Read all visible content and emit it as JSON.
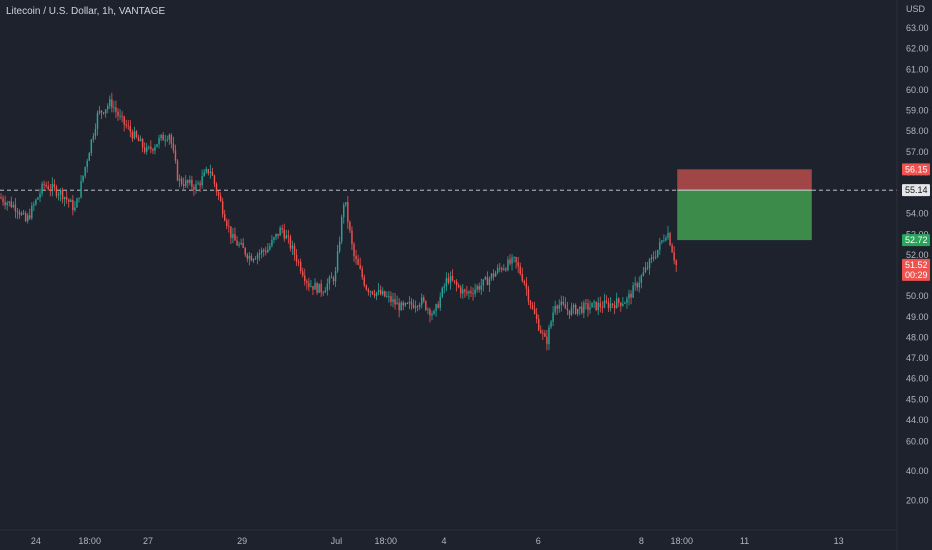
{
  "chart_data": {
    "type": "candlestick",
    "title": "Litecoin / U.S. Dollar, 1h, VANTAGE",
    "currency": "USD",
    "ylim": [
      44,
      63.5
    ],
    "y_ticks": [
      "63.00",
      "62.00",
      "61.00",
      "60.00",
      "59.00",
      "58.00",
      "57.00",
      "56.00",
      "55.00",
      "54.00",
      "53.00",
      "52.00",
      "51.00",
      "50.00",
      "49.00",
      "48.00",
      "47.00",
      "46.00",
      "45.00",
      "44.00"
    ],
    "rsi_ticks": [
      "60.00",
      "40.00",
      "20.00"
    ],
    "rsi_ylim": [
      10,
      70
    ],
    "x_ticks": [
      "24",
      "18:00",
      "27",
      "29",
      "Jul",
      "18:00",
      "4",
      "6",
      "8",
      "18:00",
      "11",
      "13"
    ],
    "x_ticks_pos": [
      0.04,
      0.1,
      0.165,
      0.27,
      0.375,
      0.43,
      0.495,
      0.6,
      0.715,
      0.76,
      0.83,
      0.935
    ],
    "price_path": [
      {
        "t": 0.0,
        "v": 54.8
      },
      {
        "t": 0.02,
        "v": 54.3
      },
      {
        "t": 0.03,
        "v": 53.6
      },
      {
        "t": 0.05,
        "v": 55.4
      },
      {
        "t": 0.07,
        "v": 55.0
      },
      {
        "t": 0.085,
        "v": 54.2
      },
      {
        "t": 0.1,
        "v": 57.0
      },
      {
        "t": 0.11,
        "v": 58.8
      },
      {
        "t": 0.125,
        "v": 59.4
      },
      {
        "t": 0.135,
        "v": 58.6
      },
      {
        "t": 0.15,
        "v": 57.8
      },
      {
        "t": 0.165,
        "v": 57.0
      },
      {
        "t": 0.18,
        "v": 57.6
      },
      {
        "t": 0.19,
        "v": 57.9
      },
      {
        "t": 0.2,
        "v": 55.6
      },
      {
        "t": 0.22,
        "v": 55.3
      },
      {
        "t": 0.235,
        "v": 56.2
      },
      {
        "t": 0.245,
        "v": 54.8
      },
      {
        "t": 0.26,
        "v": 52.8
      },
      {
        "t": 0.28,
        "v": 51.9
      },
      {
        "t": 0.3,
        "v": 52.3
      },
      {
        "t": 0.315,
        "v": 53.3
      },
      {
        "t": 0.33,
        "v": 52.0
      },
      {
        "t": 0.345,
        "v": 50.6
      },
      {
        "t": 0.36,
        "v": 50.3
      },
      {
        "t": 0.375,
        "v": 51.0
      },
      {
        "t": 0.385,
        "v": 54.8
      },
      {
        "t": 0.395,
        "v": 52.0
      },
      {
        "t": 0.41,
        "v": 50.4
      },
      {
        "t": 0.43,
        "v": 50.0
      },
      {
        "t": 0.45,
        "v": 49.4
      },
      {
        "t": 0.47,
        "v": 49.8
      },
      {
        "t": 0.485,
        "v": 49.1
      },
      {
        "t": 0.5,
        "v": 50.9
      },
      {
        "t": 0.52,
        "v": 50.1
      },
      {
        "t": 0.54,
        "v": 50.6
      },
      {
        "t": 0.56,
        "v": 51.4
      },
      {
        "t": 0.575,
        "v": 51.7
      },
      {
        "t": 0.585,
        "v": 50.8
      },
      {
        "t": 0.595,
        "v": 49.3
      },
      {
        "t": 0.61,
        "v": 47.7
      },
      {
        "t": 0.62,
        "v": 49.7
      },
      {
        "t": 0.635,
        "v": 49.3
      },
      {
        "t": 0.66,
        "v": 49.5
      },
      {
        "t": 0.68,
        "v": 49.6
      },
      {
        "t": 0.7,
        "v": 49.8
      },
      {
        "t": 0.72,
        "v": 51.2
      },
      {
        "t": 0.735,
        "v": 52.3
      },
      {
        "t": 0.745,
        "v": 53.2
      },
      {
        "t": 0.755,
        "v": 51.5
      }
    ],
    "reference_price": 55.14,
    "markers": {
      "stop_loss": {
        "value": 56.15,
        "label": "56.15"
      },
      "entry": {
        "value": 55.14,
        "label": "55.14"
      },
      "take_profit": {
        "value": 52.72,
        "label": "52.72"
      },
      "last_price": {
        "value": 51.52,
        "label": "51.52",
        "countdown": "00:29"
      }
    },
    "position_box_time": [
      0.755,
      0.905
    ],
    "colors": {
      "up": "#26a69a",
      "down": "#ef5350",
      "background": "#1e222d",
      "stop_zone": "#a04646",
      "profit_zone": "#3d8b4a",
      "text": "#b2b5be"
    }
  }
}
